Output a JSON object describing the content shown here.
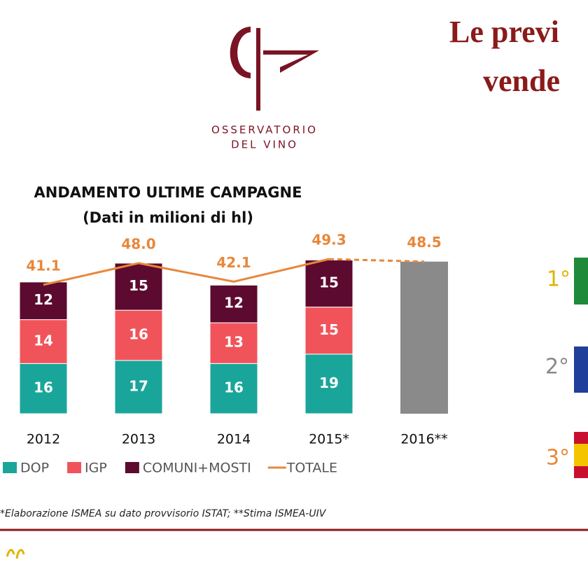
{
  "page": {
    "logo_line1": "OSSERVATORIO",
    "logo_line2": "DEL VINO",
    "title_line1": "Le previ",
    "title_line2": "vende",
    "ranks": [
      "1°",
      "2°",
      "3°"
    ],
    "footnote": "*Elaborazione ISMEA su dato provvisorio ISTAT; **Stima ISMEA-UIV"
  },
  "chart_data": {
    "type": "bar",
    "stacked": true,
    "title": "ANDAMENTO ULTIME CAMPAGNE",
    "subtitle": "(Dati in milioni di hl)",
    "categories": [
      "2012",
      "2013",
      "2014",
      "2015*",
      "2016**"
    ],
    "estimate_color": "#8a8a8a",
    "series": [
      {
        "name": "DOP",
        "color": "#1aa59a",
        "values": [
          16,
          17,
          16,
          19,
          null
        ]
      },
      {
        "name": "IGP",
        "color": "#f0545a",
        "values": [
          14,
          16,
          13,
          15,
          null
        ]
      },
      {
        "name": "COMUNI+MOSTI",
        "color": "#5c0a2f",
        "values": [
          12,
          15,
          12,
          15,
          null
        ]
      },
      {
        "name": "TOTALE",
        "type": "line",
        "color": "#e8873a",
        "values": [
          41.1,
          48.0,
          42.1,
          49.3,
          48.5
        ],
        "value_labels": [
          "41.1",
          "48.0",
          "42.1",
          "49.3",
          "48.5"
        ]
      }
    ]
  }
}
